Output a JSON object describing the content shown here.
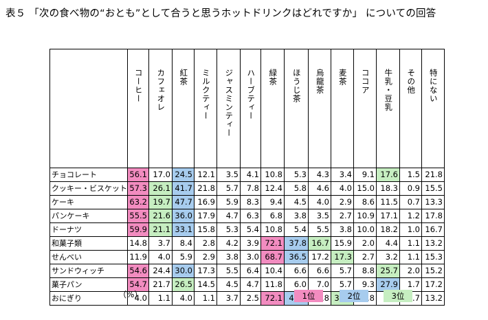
{
  "title": "表５ 「次の食べ物の“おとも”として合うと思うホットドリンクはどれですか」 についての回答",
  "table": {
    "columns": [
      "コーヒー",
      "カフェオレ",
      "紅茶",
      "ミルクティー",
      "ジャスミンティー",
      "ハーブティー",
      "緑茶",
      "ほうじ茶",
      "烏龍茶",
      "麦茶",
      "ココア",
      "牛乳・豆乳",
      "その他",
      "特にない"
    ],
    "rows": [
      {
        "label": "チョコレート",
        "values": [
          "56.1",
          "17.0",
          "24.5",
          "12.1",
          "3.5",
          "4.1",
          "10.8",
          "5.3",
          "4.3",
          "3.4",
          "9.1",
          "17.6",
          "1.5",
          "21.8"
        ],
        "ranks": [
          1,
          0,
          2,
          0,
          0,
          0,
          0,
          0,
          0,
          0,
          0,
          3,
          0,
          0
        ]
      },
      {
        "label": "クッキー・ビスケット",
        "values": [
          "57.3",
          "26.1",
          "41.7",
          "21.8",
          "5.7",
          "7.8",
          "12.4",
          "5.8",
          "4.6",
          "4.0",
          "15.0",
          "18.3",
          "0.9",
          "15.5"
        ],
        "ranks": [
          1,
          3,
          2,
          0,
          0,
          0,
          0,
          0,
          0,
          0,
          0,
          0,
          0,
          0
        ]
      },
      {
        "label": "ケーキ",
        "values": [
          "63.2",
          "19.7",
          "47.7",
          "16.9",
          "5.9",
          "8.3",
          "9.4",
          "4.5",
          "4.0",
          "2.9",
          "8.6",
          "11.5",
          "0.7",
          "13.3"
        ],
        "ranks": [
          1,
          3,
          2,
          0,
          0,
          0,
          0,
          0,
          0,
          0,
          0,
          0,
          0,
          0
        ]
      },
      {
        "label": "パンケーキ",
        "values": [
          "55.5",
          "21.6",
          "36.0",
          "17.9",
          "4.7",
          "6.3",
          "6.8",
          "3.8",
          "3.5",
          "2.7",
          "10.9",
          "17.1",
          "1.2",
          "17.8"
        ],
        "ranks": [
          1,
          3,
          2,
          0,
          0,
          0,
          0,
          0,
          0,
          0,
          0,
          0,
          0,
          0
        ]
      },
      {
        "label": "ドーナツ",
        "values": [
          "59.9",
          "21.1",
          "33.1",
          "15.8",
          "5.3",
          "5.4",
          "10.8",
          "5.4",
          "5.5",
          "3.8",
          "10.0",
          "18.2",
          "1.0",
          "16.7"
        ],
        "ranks": [
          1,
          3,
          2,
          0,
          0,
          0,
          0,
          0,
          0,
          0,
          0,
          0,
          0,
          0
        ]
      },
      {
        "label": "和菓子類",
        "values": [
          "14.8",
          "3.7",
          "8.4",
          "2.8",
          "4.2",
          "3.9",
          "72.1",
          "37.8",
          "16.7",
          "15.9",
          "2.0",
          "4.4",
          "1.1",
          "13.2"
        ],
        "ranks": [
          0,
          0,
          0,
          0,
          0,
          0,
          1,
          2,
          3,
          0,
          0,
          0,
          0,
          0
        ]
      },
      {
        "label": "せんべい",
        "values": [
          "11.9",
          "4.0",
          "5.9",
          "2.9",
          "3.8",
          "3.0",
          "68.7",
          "36.5",
          "17.2",
          "17.3",
          "2.7",
          "3.2",
          "1.1",
          "15.3"
        ],
        "ranks": [
          0,
          0,
          0,
          0,
          0,
          0,
          1,
          2,
          0,
          3,
          0,
          0,
          0,
          0
        ]
      },
      {
        "label": "サンドウィッチ",
        "values": [
          "54.6",
          "24.4",
          "30.0",
          "17.3",
          "5.5",
          "6.4",
          "10.4",
          "6.6",
          "6.6",
          "5.7",
          "8.8",
          "25.7",
          "2.0",
          "15.2"
        ],
        "ranks": [
          1,
          0,
          2,
          0,
          0,
          0,
          0,
          0,
          0,
          0,
          0,
          3,
          0,
          0
        ]
      },
      {
        "label": "菓子パン",
        "values": [
          "54.7",
          "21.7",
          "26.5",
          "14.5",
          "4.5",
          "4.7",
          "11.8",
          "6.0",
          "7.0",
          "5.7",
          "9.3",
          "27.9",
          "1.7",
          "17.2"
        ],
        "ranks": [
          1,
          0,
          3,
          0,
          0,
          0,
          0,
          0,
          0,
          0,
          0,
          2,
          0,
          0
        ]
      },
      {
        "label": "おにぎり",
        "values": [
          "4.0",
          "1.1",
          "4.0",
          "1.1",
          "3.7",
          "2.5",
          "72.1",
          "42.9",
          "27.8",
          "30.4",
          "0.8",
          "2.0",
          "1.7",
          "13.2"
        ],
        "ranks": [
          0,
          0,
          0,
          0,
          0,
          0,
          1,
          2,
          0,
          3,
          0,
          0,
          0,
          0
        ]
      }
    ]
  },
  "unit": "（%）",
  "legend": [
    {
      "label": "1位",
      "color": "#f28cc0"
    },
    {
      "label": "2位",
      "color": "#a7ccee"
    },
    {
      "label": "3位",
      "color": "#c6eec1"
    }
  ]
}
